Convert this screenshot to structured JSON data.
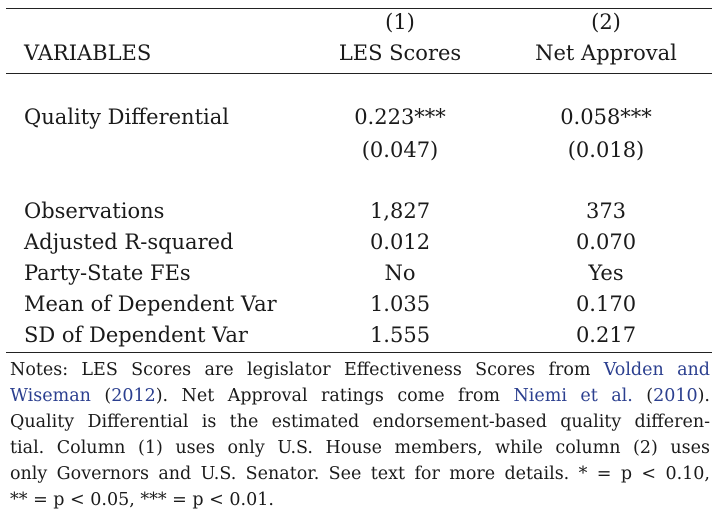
{
  "table": {
    "col_numbers": [
      "(1)",
      "(2)"
    ],
    "header": {
      "variables": "VARIABLES",
      "col1": "LES Scores",
      "col2": "Net Approval"
    },
    "rows": [
      {
        "label": "Quality Differential",
        "col1": "0.223***",
        "col2": "0.058***"
      },
      {
        "label": "",
        "col1": "(0.047)",
        "col2": "(0.018)"
      },
      {
        "label": "Observations",
        "col1": "1,827",
        "col2": "373"
      },
      {
        "label": "Adjusted R-squared",
        "col1": "0.012",
        "col2": "0.070"
      },
      {
        "label": "Party-State FEs",
        "col1": "No",
        "col2": "Yes"
      },
      {
        "label": "Mean of Dependent Var",
        "col1": "1.035",
        "col2": "0.170"
      },
      {
        "label": "SD of Dependent Var",
        "col1": "1.555",
        "col2": "0.217"
      }
    ]
  },
  "notes": {
    "l1a": "Notes:  LES Scores are legislator Effectiveness Scores from ",
    "l1link": "Volden and",
    "l2link": "Wiseman",
    "l2b": " (",
    "l2year": "2012",
    "l2c": ").  Net Approval ratings come from ",
    "l2link2": "Niemi et al.",
    "l2d": " (",
    "l2year2": "2010",
    "l2e": ").",
    "l3": "Quality Differential is the estimated endorsement-based quality differen-",
    "l4": "tial.  Column (1) uses only U.S. House members, while column (2) uses",
    "l5a": "only Governors and U.S. Senator. See text for more details. ",
    "l5b": "* = p < 0.10,",
    "l6": "** = p < 0.05, *** = p < 0.01."
  }
}
